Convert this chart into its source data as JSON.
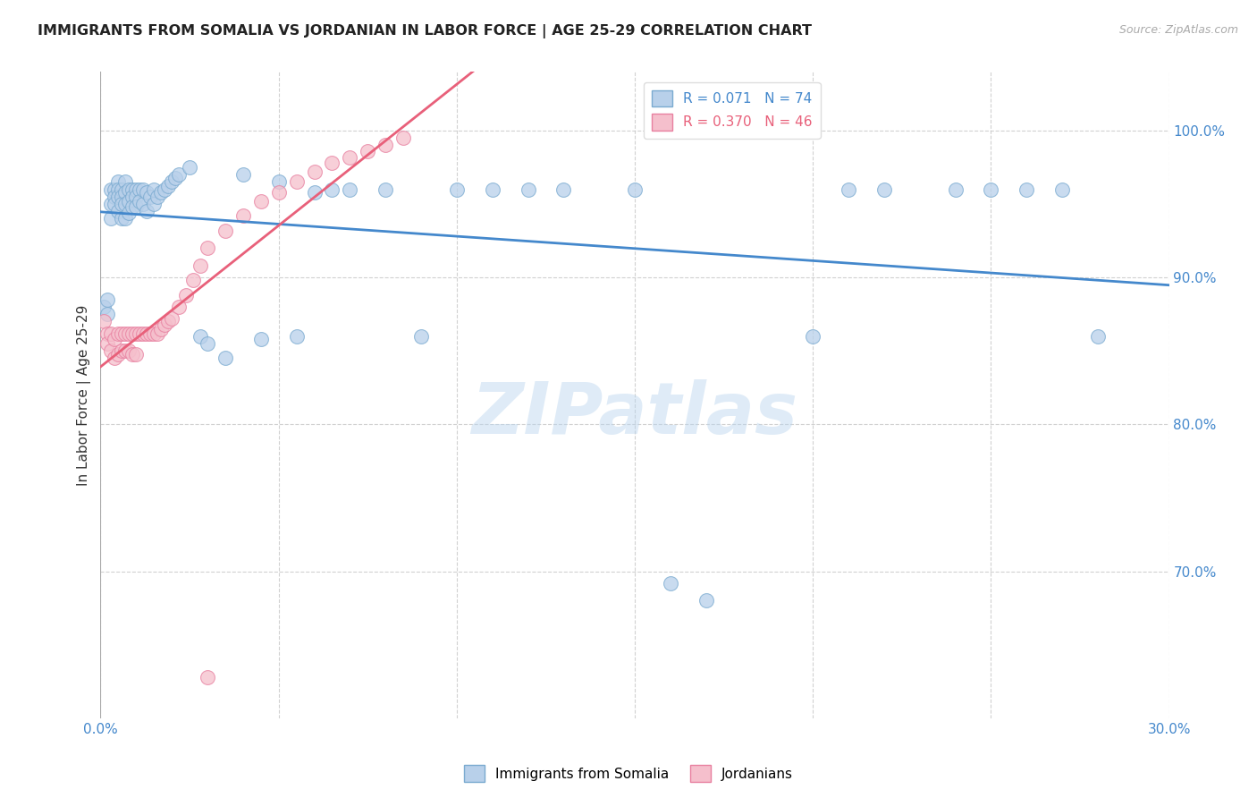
{
  "title": "IMMIGRANTS FROM SOMALIA VS JORDANIAN IN LABOR FORCE | AGE 25-29 CORRELATION CHART",
  "source": "Source: ZipAtlas.com",
  "ylabel": "In Labor Force | Age 25-29",
  "xlim": [
    0.0,
    0.3
  ],
  "ylim": [
    0.6,
    1.04
  ],
  "y_ticks": [
    0.7,
    0.8,
    0.9,
    1.0
  ],
  "y_tick_labels": [
    "70.0%",
    "80.0%",
    "90.0%",
    "100.0%"
  ],
  "somalia_color": "#b8d0ea",
  "somalia_edge": "#7aaad0",
  "jordan_color": "#f5bfcc",
  "jordan_edge": "#e880a0",
  "regression_somalia_color": "#4488cc",
  "regression_jordan_color": "#e8607a",
  "watermark_text": "ZIPatlas",
  "somalia_x": [
    0.001,
    0.002,
    0.002,
    0.003,
    0.003,
    0.003,
    0.004,
    0.004,
    0.004,
    0.005,
    0.005,
    0.005,
    0.005,
    0.006,
    0.006,
    0.006,
    0.006,
    0.007,
    0.007,
    0.007,
    0.007,
    0.008,
    0.008,
    0.008,
    0.009,
    0.009,
    0.009,
    0.01,
    0.01,
    0.01,
    0.011,
    0.011,
    0.012,
    0.012,
    0.013,
    0.013,
    0.014,
    0.015,
    0.015,
    0.016,
    0.017,
    0.018,
    0.019,
    0.02,
    0.021,
    0.022,
    0.025,
    0.028,
    0.03,
    0.035,
    0.04,
    0.045,
    0.05,
    0.055,
    0.06,
    0.065,
    0.07,
    0.08,
    0.09,
    0.1,
    0.11,
    0.12,
    0.13,
    0.15,
    0.16,
    0.17,
    0.2,
    0.21,
    0.22,
    0.24,
    0.25,
    0.26,
    0.27,
    0.28
  ],
  "somalia_y": [
    0.88,
    0.885,
    0.875,
    0.96,
    0.95,
    0.94,
    0.96,
    0.955,
    0.95,
    0.965,
    0.96,
    0.955,
    0.945,
    0.96,
    0.955,
    0.95,
    0.94,
    0.965,
    0.958,
    0.95,
    0.94,
    0.96,
    0.952,
    0.944,
    0.96,
    0.955,
    0.948,
    0.96,
    0.955,
    0.948,
    0.96,
    0.952,
    0.96,
    0.95,
    0.958,
    0.945,
    0.955,
    0.96,
    0.95,
    0.955,
    0.958,
    0.96,
    0.962,
    0.965,
    0.968,
    0.97,
    0.975,
    0.86,
    0.855,
    0.845,
    0.97,
    0.858,
    0.965,
    0.86,
    0.958,
    0.96,
    0.96,
    0.96,
    0.86,
    0.96,
    0.96,
    0.96,
    0.96,
    0.96,
    0.692,
    0.68,
    0.86,
    0.96,
    0.96,
    0.96,
    0.96,
    0.96,
    0.96,
    0.86
  ],
  "jordan_x": [
    0.001,
    0.002,
    0.002,
    0.003,
    0.003,
    0.004,
    0.004,
    0.005,
    0.005,
    0.006,
    0.006,
    0.007,
    0.007,
    0.008,
    0.008,
    0.009,
    0.009,
    0.01,
    0.01,
    0.011,
    0.012,
    0.013,
    0.014,
    0.015,
    0.016,
    0.017,
    0.018,
    0.019,
    0.02,
    0.022,
    0.024,
    0.026,
    0.028,
    0.03,
    0.035,
    0.04,
    0.045,
    0.05,
    0.055,
    0.06,
    0.065,
    0.07,
    0.075,
    0.08,
    0.085,
    0.03
  ],
  "jordan_y": [
    0.87,
    0.862,
    0.855,
    0.862,
    0.85,
    0.858,
    0.845,
    0.862,
    0.848,
    0.862,
    0.85,
    0.862,
    0.85,
    0.862,
    0.85,
    0.862,
    0.848,
    0.862,
    0.848,
    0.862,
    0.862,
    0.862,
    0.862,
    0.862,
    0.862,
    0.865,
    0.868,
    0.87,
    0.872,
    0.88,
    0.888,
    0.898,
    0.908,
    0.92,
    0.932,
    0.942,
    0.952,
    0.958,
    0.965,
    0.972,
    0.978,
    0.982,
    0.986,
    0.99,
    0.995,
    0.628
  ]
}
